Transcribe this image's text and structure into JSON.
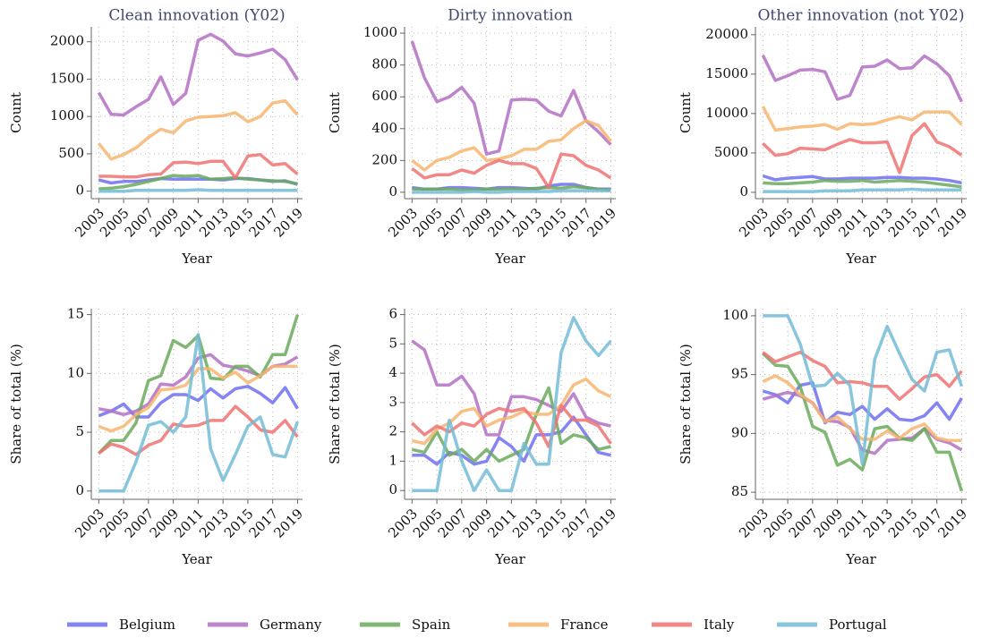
{
  "legend": [
    {
      "name": "Belgium",
      "color": "#6f6ff0"
    },
    {
      "name": "Germany",
      "color": "#b370c4"
    },
    {
      "name": "Spain",
      "color": "#6aaa5c"
    },
    {
      "name": "France",
      "color": "#f7b56e"
    },
    {
      "name": "Italy",
      "color": "#f07272"
    },
    {
      "name": "Portugal",
      "color": "#72bcd6"
    }
  ],
  "chart_data": [
    {
      "type": "line",
      "title": "Clean innovation (Y02)",
      "ylabel": "Count",
      "xlabel": "Year",
      "grid": true,
      "x": [
        2003,
        2004,
        2005,
        2006,
        2007,
        2008,
        2009,
        2010,
        2011,
        2012,
        2013,
        2014,
        2015,
        2016,
        2017,
        2018,
        2019
      ],
      "xlim": [
        2002.4,
        2019.4
      ],
      "xticks": [
        2003,
        2005,
        2007,
        2009,
        2011,
        2013,
        2015,
        2017,
        2019
      ],
      "ylim": [
        -100,
        2200
      ],
      "yticks": [
        0,
        500,
        1000,
        1500,
        2000
      ],
      "series": [
        {
          "values": [
            150,
            110,
            130,
            130,
            150,
            170,
            160,
            160,
            160,
            160,
            150,
            170,
            170,
            150,
            130,
            140,
            90
          ]
        },
        {
          "values": [
            1320,
            1030,
            1020,
            1130,
            1230,
            1530,
            1160,
            1310,
            2020,
            2100,
            2010,
            1840,
            1810,
            1850,
            1900,
            1760,
            1490
          ]
        },
        {
          "values": [
            30,
            40,
            60,
            90,
            130,
            170,
            210,
            200,
            210,
            160,
            170,
            180,
            160,
            150,
            140,
            130,
            100
          ]
        },
        {
          "values": [
            640,
            430,
            490,
            580,
            720,
            830,
            780,
            940,
            990,
            1000,
            1010,
            1050,
            930,
            1000,
            1180,
            1210,
            1020
          ]
        },
        {
          "values": [
            200,
            200,
            190,
            190,
            220,
            230,
            380,
            390,
            370,
            400,
            400,
            180,
            470,
            490,
            350,
            370,
            230
          ]
        },
        {
          "values": [
            0,
            0,
            0,
            10,
            10,
            10,
            10,
            10,
            20,
            10,
            10,
            10,
            10,
            10,
            10,
            10,
            10
          ]
        }
      ]
    },
    {
      "type": "line",
      "title": "Dirty innovation",
      "ylabel": "Count",
      "xlabel": "Year",
      "grid": true,
      "x": [
        2003,
        2004,
        2005,
        2006,
        2007,
        2008,
        2009,
        2010,
        2011,
        2012,
        2013,
        2014,
        2015,
        2016,
        2017,
        2018,
        2019
      ],
      "xlim": [
        2002.4,
        2019.4
      ],
      "xticks": [
        2003,
        2005,
        2007,
        2009,
        2011,
        2013,
        2015,
        2017,
        2019
      ],
      "ylim": [
        -40,
        1040
      ],
      "yticks": [
        0,
        200,
        400,
        600,
        800,
        1000
      ],
      "series": [
        {
          "values": [
            30,
            20,
            20,
            30,
            30,
            25,
            20,
            30,
            30,
            25,
            20,
            40,
            50,
            50,
            30,
            20,
            20
          ]
        },
        {
          "values": [
            950,
            720,
            570,
            600,
            660,
            560,
            240,
            260,
            580,
            585,
            580,
            510,
            480,
            640,
            450,
            380,
            300
          ]
        },
        {
          "values": [
            20,
            20,
            20,
            20,
            15,
            15,
            20,
            20,
            20,
            20,
            25,
            30,
            25,
            35,
            30,
            20,
            15
          ]
        },
        {
          "values": [
            200,
            140,
            200,
            220,
            260,
            280,
            200,
            210,
            230,
            270,
            270,
            320,
            330,
            400,
            450,
            420,
            320
          ]
        },
        {
          "values": [
            150,
            90,
            110,
            110,
            140,
            120,
            170,
            200,
            180,
            180,
            150,
            30,
            240,
            230,
            170,
            140,
            90
          ]
        },
        {
          "values": [
            0,
            0,
            0,
            0,
            0,
            5,
            0,
            0,
            5,
            5,
            5,
            5,
            10,
            10,
            10,
            10,
            10
          ]
        }
      ]
    },
    {
      "type": "line",
      "title": "Other innovation (not Y02)",
      "ylabel": "Count",
      "xlabel": "Year",
      "grid": true,
      "x": [
        2003,
        2004,
        2005,
        2006,
        2007,
        2008,
        2009,
        2010,
        2011,
        2012,
        2013,
        2014,
        2015,
        2016,
        2017,
        2018,
        2019
      ],
      "xlim": [
        2002.4,
        2019.4
      ],
      "xticks": [
        2003,
        2005,
        2007,
        2009,
        2011,
        2013,
        2015,
        2017,
        2019
      ],
      "ylim": [
        -800,
        21000
      ],
      "yticks": [
        0,
        5000,
        10000,
        15000,
        20000
      ],
      "series": [
        {
          "values": [
            2100,
            1600,
            1800,
            1900,
            2000,
            1700,
            1700,
            1800,
            1800,
            1800,
            1900,
            1900,
            1800,
            1800,
            1700,
            1500,
            1200
          ]
        },
        {
          "values": [
            17400,
            14200,
            14800,
            15500,
            15600,
            15300,
            11800,
            12300,
            15900,
            16000,
            16800,
            15700,
            15800,
            17300,
            16300,
            14800,
            11500
          ]
        },
        {
          "values": [
            1200,
            1100,
            1100,
            1200,
            1300,
            1500,
            1400,
            1400,
            1500,
            1300,
            1400,
            1500,
            1400,
            1300,
            1100,
            900,
            700
          ]
        },
        {
          "values": [
            10900,
            7900,
            8100,
            8300,
            8400,
            8600,
            8000,
            8700,
            8600,
            8700,
            9200,
            9600,
            9200,
            10200,
            10200,
            10200,
            8600
          ]
        },
        {
          "values": [
            6200,
            4700,
            4900,
            5600,
            5500,
            5400,
            6100,
            6700,
            6300,
            6300,
            6400,
            2500,
            7200,
            8700,
            6400,
            5800,
            4700
          ]
        },
        {
          "values": [
            100,
            100,
            100,
            100,
            100,
            200,
            200,
            200,
            300,
            300,
            300,
            300,
            400,
            300,
            300,
            300,
            300
          ]
        }
      ]
    },
    {
      "type": "line",
      "ylabel": "Share of total (%)",
      "xlabel": "Year",
      "grid": true,
      "x": [
        2003,
        2004,
        2005,
        2006,
        2007,
        2008,
        2009,
        2010,
        2011,
        2012,
        2013,
        2014,
        2015,
        2016,
        2017,
        2018,
        2019
      ],
      "xlim": [
        2002.4,
        2019.4
      ],
      "xticks": [
        2003,
        2005,
        2007,
        2009,
        2011,
        2013,
        2015,
        2017,
        2019
      ],
      "ylim": [
        -0.7,
        15.5
      ],
      "yticks": [
        0,
        5,
        10,
        15
      ],
      "series": [
        {
          "values": [
            6.4,
            6.8,
            7.4,
            6.3,
            6.3,
            7.5,
            8.2,
            8.2,
            7.7,
            8.7,
            7.9,
            8.7,
            8.9,
            8.3,
            7.5,
            8.8,
            7.0
          ]
        },
        {
          "values": [
            7.0,
            6.8,
            6.5,
            6.8,
            7.4,
            9.1,
            9.0,
            9.7,
            11.3,
            11.6,
            10.7,
            10.5,
            10.2,
            9.8,
            10.6,
            10.8,
            11.4
          ]
        },
        {
          "values": [
            3.2,
            4.3,
            4.3,
            5.8,
            9.4,
            9.8,
            12.8,
            12.2,
            13.2,
            9.6,
            9.5,
            10.6,
            10.6,
            9.7,
            11.6,
            11.6,
            15.0
          ]
        },
        {
          "values": [
            5.5,
            5.1,
            5.5,
            6.5,
            7.1,
            8.6,
            8.7,
            9.0,
            10.4,
            10.4,
            9.6,
            10.1,
            9.2,
            9.8,
            10.6,
            10.6,
            10.6
          ]
        },
        {
          "values": [
            3.2,
            4.0,
            3.7,
            3.1,
            3.9,
            4.3,
            5.7,
            5.5,
            5.6,
            6.0,
            6.0,
            7.2,
            6.3,
            5.2,
            5.0,
            6.0,
            4.6
          ]
        },
        {
          "values": [
            0,
            0,
            0,
            2.5,
            5.6,
            5.9,
            5.0,
            6.3,
            13.3,
            3.6,
            0.9,
            3.1,
            5.5,
            6.3,
            3.1,
            2.9,
            5.9
          ]
        }
      ]
    },
    {
      "type": "line",
      "ylabel": "Share of total (%)",
      "xlabel": "Year",
      "grid": true,
      "x": [
        2003,
        2004,
        2005,
        2006,
        2007,
        2008,
        2009,
        2010,
        2011,
        2012,
        2013,
        2014,
        2015,
        2016,
        2017,
        2018,
        2019
      ],
      "xlim": [
        2002.4,
        2019.4
      ],
      "xticks": [
        2003,
        2005,
        2007,
        2009,
        2011,
        2013,
        2015,
        2017,
        2019
      ],
      "ylim": [
        -0.3,
        6.2
      ],
      "yticks": [
        0,
        1,
        2,
        3,
        4,
        5,
        6
      ],
      "series": [
        {
          "values": [
            1.2,
            1.2,
            0.9,
            1.3,
            1.2,
            0.9,
            1.0,
            1.8,
            1.5,
            1.0,
            1.9,
            1.9,
            2.0,
            2.5,
            1.9,
            1.3,
            1.2
          ]
        },
        {
          "values": [
            5.1,
            4.8,
            3.6,
            3.6,
            3.9,
            3.3,
            1.9,
            1.9,
            3.2,
            3.2,
            3.1,
            2.9,
            2.7,
            3.3,
            2.5,
            2.3,
            2.2
          ]
        },
        {
          "values": [
            1.4,
            1.3,
            2.0,
            1.2,
            1.4,
            1.0,
            1.4,
            1.0,
            1.2,
            1.4,
            2.6,
            3.5,
            1.6,
            1.9,
            1.8,
            1.4,
            1.5
          ]
        },
        {
          "values": [
            1.7,
            1.6,
            2.1,
            2.3,
            2.7,
            2.8,
            2.2,
            2.4,
            2.5,
            2.7,
            2.6,
            2.6,
            2.9,
            3.6,
            3.8,
            3.4,
            3.2
          ]
        },
        {
          "values": [
            2.3,
            1.9,
            2.2,
            2.0,
            2.3,
            2.2,
            2.6,
            2.8,
            2.7,
            2.8,
            2.3,
            1.5,
            2.9,
            2.4,
            2.4,
            2.2,
            1.6
          ]
        },
        {
          "values": [
            0,
            0,
            0,
            2.4,
            1.0,
            0,
            0.7,
            0,
            0,
            1.6,
            0.9,
            0.9,
            4.7,
            5.9,
            5.1,
            4.6,
            5.1
          ]
        }
      ]
    },
    {
      "type": "line",
      "ylabel": "Share of total (%)",
      "xlabel": "Year",
      "grid": true,
      "x": [
        2003,
        2004,
        2005,
        2006,
        2007,
        2008,
        2009,
        2010,
        2011,
        2012,
        2013,
        2014,
        2015,
        2016,
        2017,
        2018,
        2019
      ],
      "xlim": [
        2002.4,
        2019.4
      ],
      "xticks": [
        2003,
        2005,
        2007,
        2009,
        2011,
        2013,
        2015,
        2017,
        2019
      ],
      "ylim": [
        84.4,
        100.6
      ],
      "yticks": [
        85,
        90,
        95,
        100
      ],
      "series": [
        {
          "values": [
            93.6,
            93.3,
            92.6,
            94.1,
            94.3,
            90.9,
            91.8,
            91.6,
            92.3,
            91.2,
            92.1,
            91.2,
            91.1,
            91.5,
            92.6,
            91.2,
            93.0
          ]
        },
        {
          "values": [
            92.9,
            93.2,
            93.5,
            93.2,
            92.6,
            91.1,
            91.0,
            90.5,
            88.6,
            88.3,
            89.4,
            89.5,
            89.6,
            90.4,
            89.5,
            89.2,
            88.6
          ]
        },
        {
          "values": [
            96.8,
            95.8,
            95.7,
            94.0,
            90.6,
            90.1,
            87.3,
            87.8,
            86.9,
            90.4,
            90.6,
            89.6,
            89.4,
            90.4,
            88.4,
            88.4,
            85.1
          ]
        },
        {
          "values": [
            94.4,
            94.9,
            94.3,
            93.3,
            92.6,
            91.0,
            91.4,
            90.4,
            89.5,
            89.5,
            90.2,
            89.6,
            90.4,
            90.8,
            89.6,
            89.4,
            89.4
          ]
        },
        {
          "values": [
            96.9,
            96.1,
            96.5,
            96.9,
            96.2,
            95.7,
            94.3,
            94.4,
            94.3,
            94.0,
            94.0,
            92.9,
            93.8,
            94.8,
            95.0,
            94.0,
            95.3
          ]
        },
        {
          "values": [
            100,
            100,
            100,
            97.6,
            94.0,
            94.1,
            95.1,
            94.1,
            87.4,
            96.3,
            99.1,
            96.8,
            94.6,
            93.6,
            96.9,
            97.1,
            94.0
          ]
        }
      ]
    }
  ]
}
